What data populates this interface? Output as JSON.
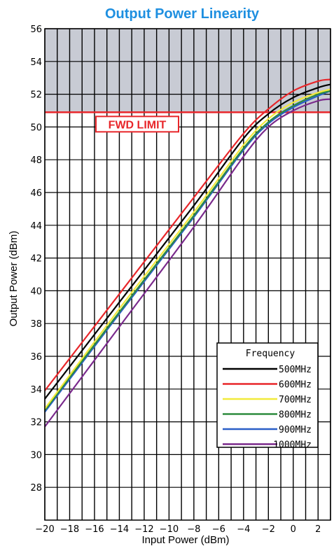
{
  "chart_data": {
    "type": "line",
    "title": "Output Power Linearity",
    "xlabel": "Input Power (dBm)",
    "ylabel": "Output Power (dBm)",
    "xlim": [
      -20,
      3
    ],
    "ylim": [
      26,
      56
    ],
    "x_ticks": [
      -20,
      -18,
      -16,
      -14,
      -12,
      -10,
      -8,
      -6,
      -4,
      -2,
      0,
      2
    ],
    "y_ticks": [
      28,
      30,
      32,
      34,
      36,
      38,
      40,
      42,
      44,
      46,
      48,
      50,
      52,
      54,
      56
    ],
    "grid": true,
    "limit": {
      "label": "FWD LIMIT",
      "value": 50.9,
      "color": "#e8262a",
      "shaded_above": true,
      "shade_color": "#c8cbd4"
    },
    "legend": {
      "title": "Frequency",
      "placement": "bottom-right"
    },
    "series": [
      {
        "name": "500MHz",
        "color": "#000000",
        "points": [
          [
            -20,
            33.4
          ],
          [
            -14,
            39.3
          ],
          [
            -8,
            45.2
          ],
          [
            -4,
            49.3
          ],
          [
            -2,
            50.8
          ],
          [
            0,
            51.8
          ],
          [
            2,
            52.4
          ],
          [
            3,
            52.6
          ]
        ]
      },
      {
        "name": "600MHz",
        "color": "#e8262a",
        "points": [
          [
            -20,
            33.9
          ],
          [
            -14,
            39.8
          ],
          [
            -8,
            45.7
          ],
          [
            -4,
            49.6
          ],
          [
            -2,
            51.1
          ],
          [
            0,
            52.2
          ],
          [
            2,
            52.8
          ],
          [
            3,
            52.9
          ]
        ]
      },
      {
        "name": "700MHz",
        "color": "#f2ea3b",
        "points": [
          [
            -20,
            32.8
          ],
          [
            -14,
            38.9
          ],
          [
            -8,
            44.8
          ],
          [
            -4,
            48.9
          ],
          [
            -2,
            50.5
          ],
          [
            0,
            51.5
          ],
          [
            2,
            52.1
          ],
          [
            3,
            52.3
          ]
        ]
      },
      {
        "name": "800MHz",
        "color": "#2e8b3e",
        "points": [
          [
            -20,
            32.7
          ],
          [
            -14,
            38.7
          ],
          [
            -8,
            44.6
          ],
          [
            -4,
            48.7
          ],
          [
            -2,
            50.3
          ],
          [
            0,
            51.3
          ],
          [
            2,
            52.0
          ],
          [
            3,
            52.2
          ]
        ]
      },
      {
        "name": "900MHz",
        "color": "#2a5fc7",
        "points": [
          [
            -20,
            32.6
          ],
          [
            -14,
            38.6
          ],
          [
            -8,
            44.5
          ],
          [
            -4,
            48.6
          ],
          [
            -2,
            50.2
          ],
          [
            0,
            51.2
          ],
          [
            2,
            51.9
          ],
          [
            3,
            52.2
          ]
        ]
      },
      {
        "name": "1000MHz",
        "color": "#7a2a8c",
        "points": [
          [
            -20,
            31.7
          ],
          [
            -14,
            37.8
          ],
          [
            -8,
            43.9
          ],
          [
            -4,
            48.2
          ],
          [
            -2,
            50.0
          ],
          [
            0,
            51.0
          ],
          [
            2,
            51.6
          ],
          [
            3,
            51.7
          ]
        ]
      }
    ]
  },
  "colors": {
    "title": "#1e8fe0",
    "grid": "#000000"
  }
}
